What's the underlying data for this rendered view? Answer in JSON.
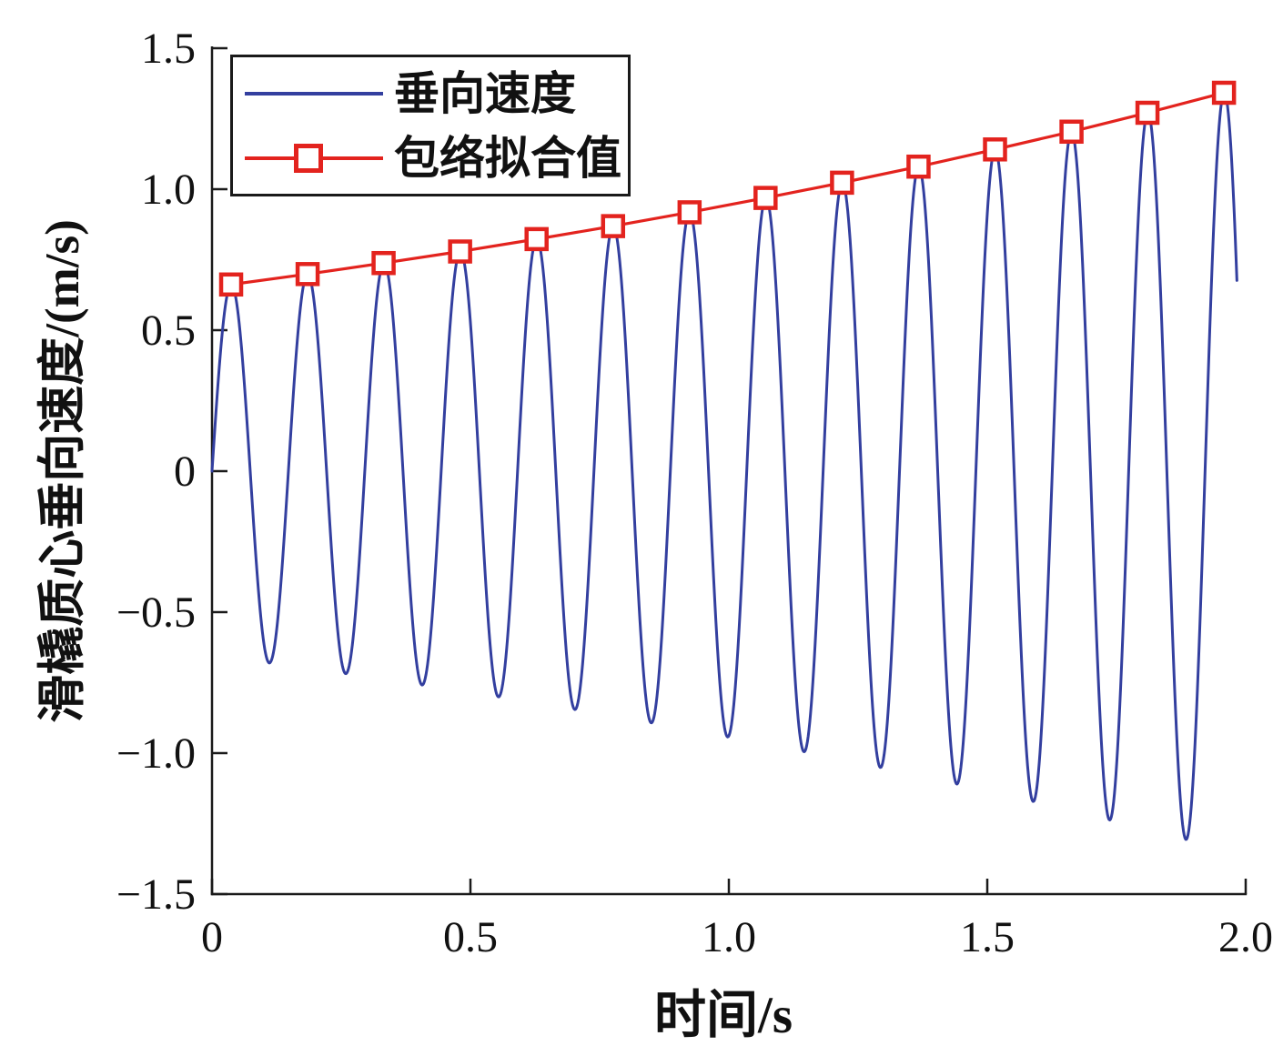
{
  "figure": {
    "background": "#ffffff",
    "axis_color": "#1a1a1a",
    "text_color": "#111111"
  },
  "chart_data": {
    "type": "line",
    "title": "",
    "xlabel": "时间/s",
    "ylabel": "滑橇质心垂向速度/(m/s)",
    "xlim": [
      0,
      2
    ],
    "ylim": [
      -1.5,
      1.5
    ],
    "x_ticks": [
      0,
      0.5,
      1,
      1.5,
      2
    ],
    "x_tick_labels": [
      "0",
      "0.5",
      "1.0",
      "1.5",
      "2.0"
    ],
    "y_ticks": [
      -1.5,
      -1,
      -0.5,
      0,
      0.5,
      1,
      1.5
    ],
    "y_tick_labels": [
      "−1.5",
      "−1.0",
      "−0.5",
      "0",
      "0.5",
      "1.0",
      "1.5"
    ],
    "grid": false,
    "legend_position": "top-left",
    "series": [
      {
        "name": "垂向速度",
        "type": "line",
        "color": "#333f9f",
        "line_width": 3,
        "model": {
          "kind": "exp_growth_sine",
          "formula": "v(t) = 0.653 * exp(0.368*t) * sin(2*pi*t/0.1478)",
          "amplitude0_ms": 0.653,
          "growth_rate_per_s": 0.368,
          "period_s": 0.1478,
          "t_start_s": 0,
          "t_end_s": 1.983
        }
      },
      {
        "name": "包络拟合值",
        "type": "line+marker",
        "color": "#e3231e",
        "line_width": 3.2,
        "marker": "open-square",
        "marker_size_px": 26,
        "x": [
          0.037,
          0.185,
          0.332,
          0.48,
          0.628,
          0.776,
          0.924,
          1.071,
          1.219,
          1.367,
          1.515,
          1.663,
          1.81,
          1.958
        ],
        "y": [
          0.662,
          0.699,
          0.738,
          0.779,
          0.823,
          0.869,
          0.918,
          0.969,
          1.023,
          1.08,
          1.141,
          1.204,
          1.271,
          1.342
        ]
      }
    ]
  }
}
